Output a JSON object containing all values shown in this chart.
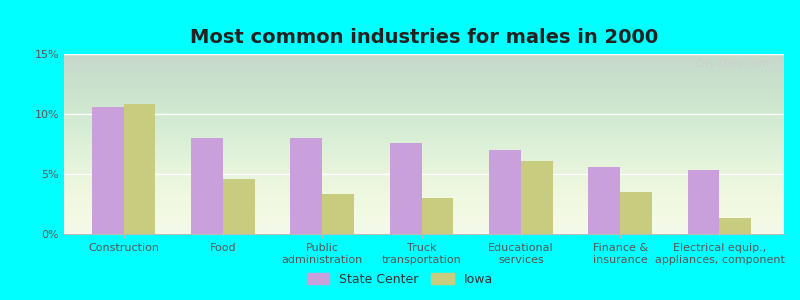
{
  "title": "Most common industries for males in 2000",
  "categories": [
    "Construction",
    "Food",
    "Public\nadministration",
    "Truck\ntransportation",
    "Educational\nservices",
    "Finance &\ninsurance",
    "Electrical equip.,\nappliances, component"
  ],
  "state_center_values": [
    10.6,
    8.0,
    8.0,
    7.6,
    7.0,
    5.6,
    5.3
  ],
  "iowa_values": [
    10.8,
    4.6,
    3.3,
    3.0,
    6.1,
    3.5,
    1.3
  ],
  "state_center_color": "#c9a0dc",
  "iowa_color": "#c8cc7e",
  "plot_bg_top": "#f0f8e8",
  "plot_bg_bottom": "#ffffff",
  "outer_background": "#00ffff",
  "ylim": [
    0,
    15
  ],
  "yticks": [
    0,
    5,
    10,
    15
  ],
  "ytick_labels": [
    "0%",
    "5%",
    "10%",
    "15%"
  ],
  "legend_labels": [
    "State Center",
    "Iowa"
  ],
  "bar_width": 0.32,
  "title_fontsize": 14,
  "axis_label_fontsize": 8,
  "legend_fontsize": 9
}
